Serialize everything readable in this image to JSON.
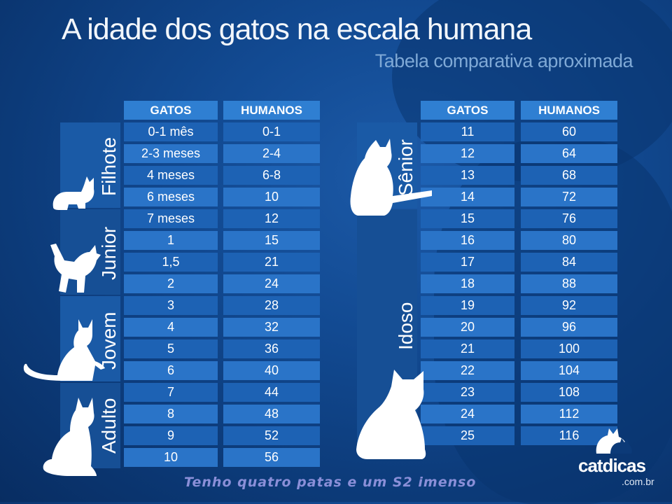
{
  "header": {
    "title": "A idade dos gatos na escala humana",
    "subtitle": "Tabela comparativa aproximada"
  },
  "columns": {
    "cats": "GATOS",
    "humans": "HUMANOS"
  },
  "groups_left": [
    "Filhote",
    "Junior",
    "Jovem",
    "Adulto"
  ],
  "groups_right": [
    "Sênior",
    "Idoso"
  ],
  "left_rows": [
    {
      "cat": "0-1 mês",
      "human": "0-1"
    },
    {
      "cat": "2-3 meses",
      "human": "2-4"
    },
    {
      "cat": "4 meses",
      "human": "6-8"
    },
    {
      "cat": "6 meses",
      "human": "10"
    },
    {
      "cat": "7 meses",
      "human": "12"
    },
    {
      "cat": "1",
      "human": "15"
    },
    {
      "cat": "1,5",
      "human": "21"
    },
    {
      "cat": "2",
      "human": "24"
    },
    {
      "cat": "3",
      "human": "28"
    },
    {
      "cat": "4",
      "human": "32"
    },
    {
      "cat": "5",
      "human": "36"
    },
    {
      "cat": "6",
      "human": "40"
    },
    {
      "cat": "7",
      "human": "44"
    },
    {
      "cat": "8",
      "human": "48"
    },
    {
      "cat": "9",
      "human": "52"
    },
    {
      "cat": "10",
      "human": "56"
    }
  ],
  "right_rows": [
    {
      "cat": "11",
      "human": "60"
    },
    {
      "cat": "12",
      "human": "64"
    },
    {
      "cat": "13",
      "human": "68"
    },
    {
      "cat": "14",
      "human": "72"
    },
    {
      "cat": "15",
      "human": "76"
    },
    {
      "cat": "16",
      "human": "80"
    },
    {
      "cat": "17",
      "human": "84"
    },
    {
      "cat": "18",
      "human": "88"
    },
    {
      "cat": "19",
      "human": "92"
    },
    {
      "cat": "20",
      "human": "96"
    },
    {
      "cat": "21",
      "human": "100"
    },
    {
      "cat": "22",
      "human": "104"
    },
    {
      "cat": "23",
      "human": "108"
    },
    {
      "cat": "24",
      "human": "112"
    },
    {
      "cat": "25",
      "human": "116"
    }
  ],
  "footer": {
    "caption": "Tenho quatro patas e um S2 imenso"
  },
  "logo": {
    "brand": "catdicas",
    "domain": ".com.br"
  }
}
